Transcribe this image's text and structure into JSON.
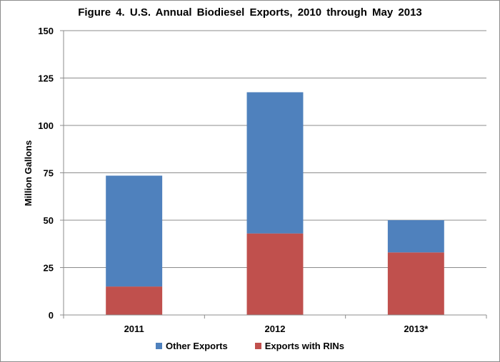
{
  "chart_data": {
    "type": "bar",
    "stacked": true,
    "title": "Figure  4. U.S. Annual  Biodiesel  Exports,  2010 through  May  2013",
    "ylabel": "Million Gallons",
    "xlabel": "",
    "ylim": [
      0,
      150
    ],
    "yticks": [
      0,
      25,
      50,
      75,
      100,
      125,
      150
    ],
    "grid": true,
    "legend_position": "bottom",
    "categories": [
      "2011",
      "2012",
      "2013*"
    ],
    "series": [
      {
        "name": "Exports with RINs",
        "color": "#c0504d",
        "values": [
          15,
          43,
          33
        ]
      },
      {
        "name": "Other Exports",
        "color": "#4f81bd",
        "values": [
          58.5,
          74.5,
          17
        ]
      }
    ],
    "legend_order": [
      "Other Exports",
      "Exports with RINs"
    ]
  }
}
